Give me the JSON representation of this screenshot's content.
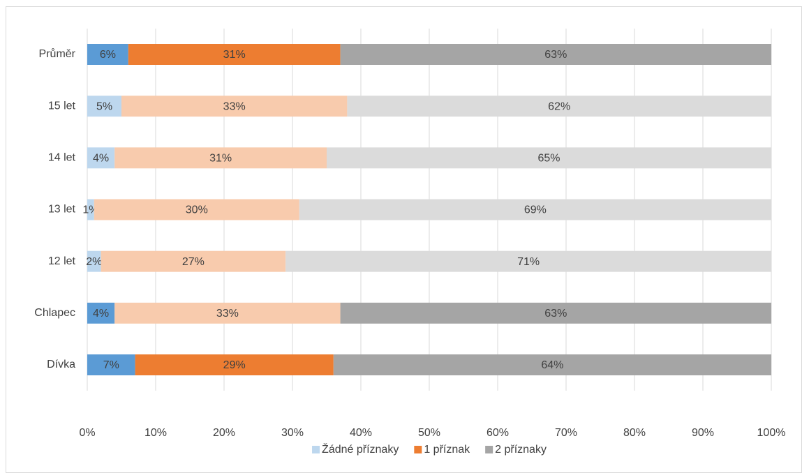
{
  "chart_data": {
    "type": "stacked-barh",
    "categories": [
      "Průměr",
      "15 let",
      "14 let",
      "13 let",
      "12 let",
      "Chlapec",
      "Dívka"
    ],
    "series": [
      {
        "name": "Žádné příznaky",
        "color": "#bdd7ee",
        "point_colors": [
          "#5b9bd5",
          "#bdd7ee",
          "#bdd7ee",
          "#bdd7ee",
          "#bdd7ee",
          "#5b9bd5",
          "#5b9bd5"
        ],
        "values": [
          6,
          5,
          4,
          1,
          2,
          4,
          7
        ],
        "value_labels": [
          "6%",
          "5%",
          "4%",
          "1%",
          "2%",
          "4%",
          "7%"
        ]
      },
      {
        "name": "1 příznak",
        "color": "#ed7d31",
        "point_colors": [
          "#ed7d31",
          "#f8cbad",
          "#f8cbad",
          "#f8cbad",
          "#f8cbad",
          "#f8cbad",
          "#ed7d31"
        ],
        "values": [
          31,
          33,
          31,
          30,
          27,
          33,
          29
        ],
        "value_labels": [
          "31%",
          "33%",
          "31%",
          "30%",
          "27%",
          "33%",
          "29%"
        ]
      },
      {
        "name": "2 příznaky",
        "color": "#a5a5a5",
        "point_colors": [
          "#a5a5a5",
          "#dbdbdb",
          "#dbdbdb",
          "#dbdbdb",
          "#dbdbdb",
          "#a5a5a5",
          "#a5a5a5"
        ],
        "values": [
          63,
          62,
          65,
          69,
          71,
          63,
          64
        ],
        "value_labels": [
          "63%",
          "62%",
          "65%",
          "69%",
          "71%",
          "63%",
          "64%"
        ]
      }
    ],
    "xlim": [
      0,
      100
    ],
    "xticks": [
      {
        "value": 0,
        "label": "0%"
      },
      {
        "value": 10,
        "label": "10%"
      },
      {
        "value": 20,
        "label": "20%"
      },
      {
        "value": 30,
        "label": "30%"
      },
      {
        "value": 40,
        "label": "40%"
      },
      {
        "value": 50,
        "label": "50%"
      },
      {
        "value": 60,
        "label": "60%"
      },
      {
        "value": 70,
        "label": "70%"
      },
      {
        "value": 80,
        "label": "80%"
      },
      {
        "value": 90,
        "label": "90%"
      },
      {
        "value": 100,
        "label": "100%"
      }
    ],
    "grid": true,
    "legend": "bottom"
  }
}
